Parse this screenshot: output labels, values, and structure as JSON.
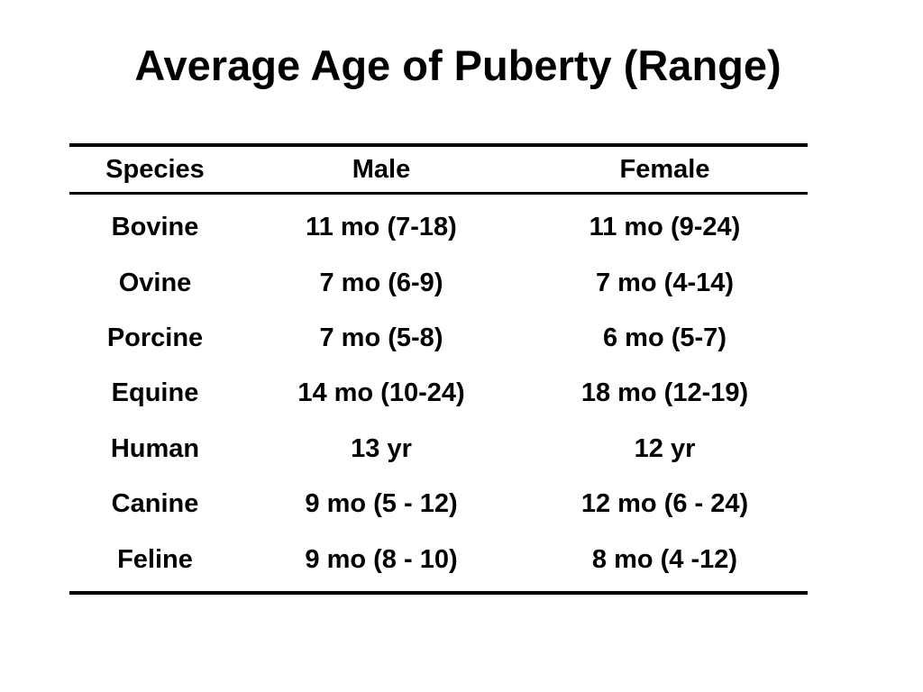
{
  "title": "Average Age of Puberty (Range)",
  "table": {
    "headers": [
      "Species",
      "Male",
      "Female"
    ],
    "rows": [
      [
        "Bovine",
        "11 mo (7-18)",
        "11 mo (9-24)"
      ],
      [
        "Ovine",
        "7 mo (6-9)",
        "7 mo (4-14)"
      ],
      [
        "Porcine",
        "7 mo (5-8)",
        "6 mo (5-7)"
      ],
      [
        "Equine",
        "14 mo (10-24)",
        "18 mo (12-19)"
      ],
      [
        "Human",
        "13 yr",
        "12 yr"
      ],
      [
        "Canine",
        "9 mo (5 - 12)",
        "12 mo (6 - 24)"
      ],
      [
        "Feline",
        "9 mo (8 - 10)",
        "8 mo (4 -12)"
      ]
    ]
  }
}
